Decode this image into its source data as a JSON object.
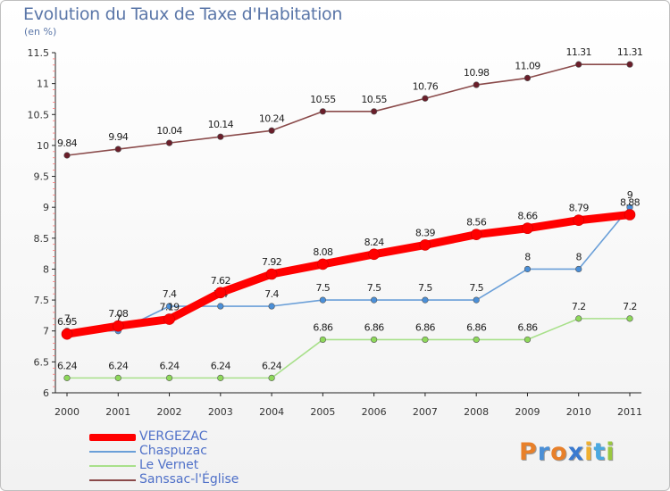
{
  "header": {
    "title": "Evolution du Taux de Taxe d'Habitation",
    "unit": "(en %)"
  },
  "chart_data": {
    "type": "line",
    "title": "Evolution du Taux de Taxe d'Habitation",
    "ylabel": "(en %)",
    "xlabel": "",
    "x": [
      "2000",
      "2001",
      "2002",
      "2003",
      "2004",
      "2005",
      "2006",
      "2007",
      "2008",
      "2009",
      "2010",
      "2011"
    ],
    "ylim": [
      6,
      11.5
    ],
    "yticks": [
      "6",
      "6.5",
      "7",
      "7.5",
      "8",
      "8.5",
      "9",
      "9.5",
      "10",
      "10.5",
      "11",
      "11.5"
    ],
    "legend_position": "bottom-left",
    "grid": false,
    "series": [
      {
        "name": "VERGEZAC",
        "color": "#ff0000",
        "values": [
          6.95,
          7.08,
          7.19,
          7.62,
          7.92,
          8.08,
          8.24,
          8.39,
          8.56,
          8.66,
          8.79,
          8.88
        ],
        "labels": [
          "6.95",
          "7.08",
          "7.19",
          "7.62",
          "7.92",
          "8.08",
          "8.24",
          "8.39",
          "8.56",
          "8.66",
          "8.79",
          "8.88"
        ]
      },
      {
        "name": "Chaspuzac",
        "color": "#6a9fd8",
        "values": [
          7,
          7,
          7.4,
          7.4,
          7.4,
          7.5,
          7.5,
          7.5,
          7.5,
          8,
          8,
          9
        ],
        "labels": [
          "7",
          "7",
          "7.4",
          "7.4",
          "7.4",
          "7.5",
          "7.5",
          "7.5",
          "7.5",
          "8",
          "8",
          "9"
        ]
      },
      {
        "name": "Le Vernet",
        "color": "#a8e08a",
        "values": [
          6.24,
          6.24,
          6.24,
          6.24,
          6.24,
          6.86,
          6.86,
          6.86,
          6.86,
          6.86,
          7.2,
          7.2
        ],
        "labels": [
          "6.24",
          "6.24",
          "6.24",
          "6.24",
          "6.24",
          "6.86",
          "6.86",
          "6.86",
          "6.86",
          "6.86",
          "7.2",
          "7.2"
        ]
      },
      {
        "name": "Sanssac-l'Église",
        "color": "#8a4a4a",
        "values": [
          9.84,
          9.94,
          10.04,
          10.14,
          10.24,
          10.55,
          10.55,
          10.76,
          10.98,
          11.09,
          11.31,
          11.31
        ],
        "labels": [
          "9.84",
          "9.94",
          "10.04",
          "10.14",
          "10.24",
          "10.55",
          "10.55",
          "10.76",
          "10.98",
          "11.09",
          "11.31",
          "11.31"
        ]
      }
    ]
  },
  "legend": {
    "items": [
      "VERGEZAC",
      "Chaspuzac",
      "Le Vernet",
      "Sanssac-l'Église"
    ]
  },
  "branding": {
    "logo_text": "Proxiti",
    "logo_colors": [
      "#e8802a",
      "#4a8fd6",
      "#e8802a",
      "#3a7ad0",
      "#f0b030",
      "#4aa8e0",
      "#9ac840"
    ]
  }
}
